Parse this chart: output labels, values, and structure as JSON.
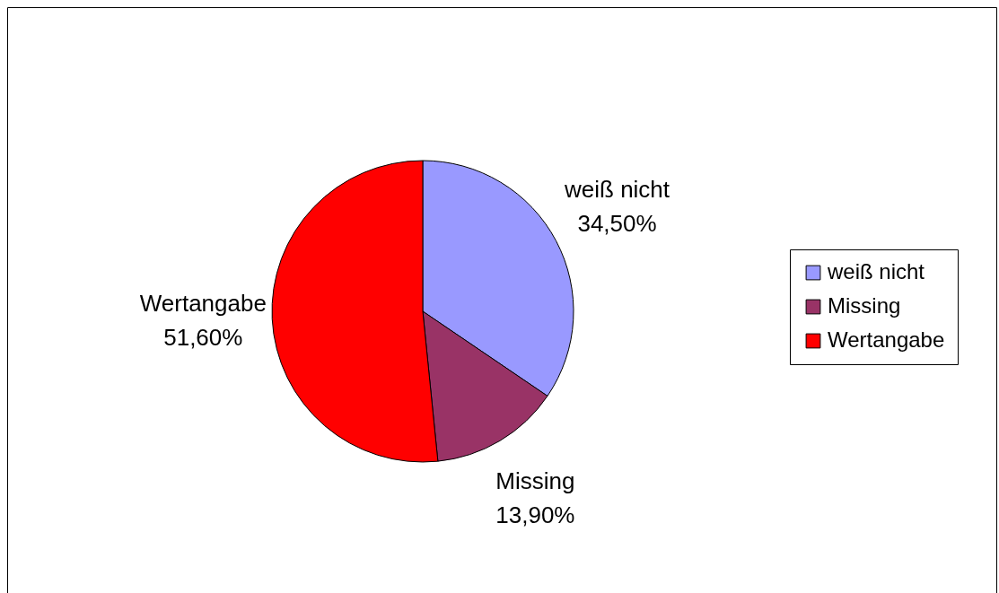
{
  "chart_data": {
    "type": "pie",
    "categories": [
      "weiß nicht",
      "Missing",
      "Wertangabe"
    ],
    "values": [
      34.5,
      13.9,
      51.6
    ],
    "colors": [
      "#9999ff",
      "#993366",
      "#ff0000"
    ],
    "value_labels": [
      "34,50%",
      "13,90%",
      "51,60%"
    ],
    "legend": "right"
  }
}
